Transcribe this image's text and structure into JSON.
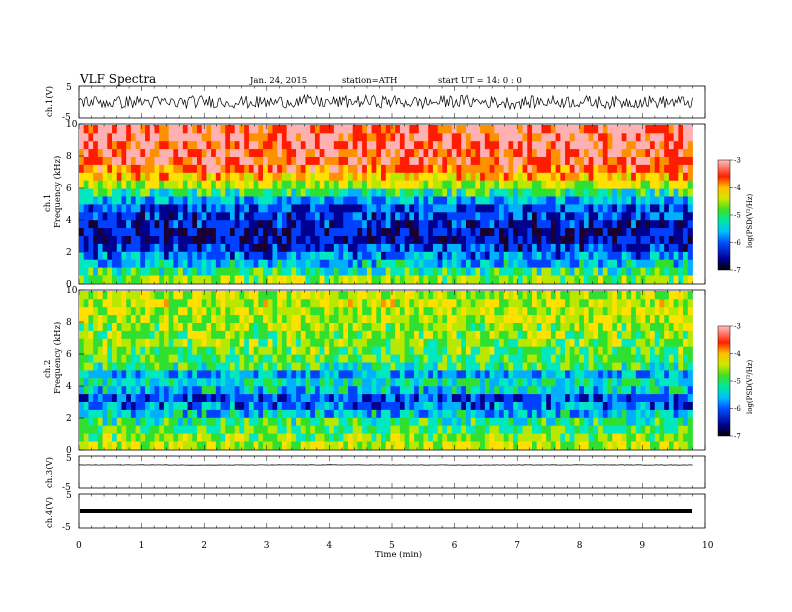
{
  "header": {
    "title": "VLF  Spectra",
    "date": "Jan. 24, 2015",
    "station": "station=ATH",
    "start": "start  UT  =    14: 0  : 0"
  },
  "colors": {
    "spectrogram_palette": [
      "#1a0030",
      "#000090",
      "#0040ff",
      "#00b0ff",
      "#00e8c0",
      "#30e030",
      "#b8e800",
      "#ffe000",
      "#ff9000",
      "#ff1c00",
      "#ffb0b0"
    ]
  },
  "chart_data": [
    {
      "type": "line",
      "name": "waveform-ch1",
      "ylabel": "ch.1(V)",
      "yticks": [
        "5",
        "-5"
      ],
      "ylim": [
        -5,
        5
      ],
      "x": [
        0,
        0.5,
        1,
        1.5,
        2,
        2.5,
        3,
        3.5,
        4,
        4.5,
        5,
        5.5,
        6,
        6.5,
        7,
        7.5,
        8,
        8.5,
        9,
        9.5,
        9.8
      ],
      "y": [
        0.3,
        -0.2,
        0.1,
        -0.3,
        0.2,
        0,
        -0.2,
        0.3,
        -0.1,
        0.2,
        0.1,
        -0.2,
        0.3,
        0,
        -0.3,
        0.2,
        0.1,
        -0.2,
        0.2,
        -0.1,
        0
      ],
      "note_range_V": [
        -2.5,
        2.5
      ]
    },
    {
      "type": "heatmap",
      "name": "spectrogram-ch1",
      "ylabel": "ch.1\nFrequency  (kHz)",
      "yticks": [
        "0",
        "2",
        "4",
        "6",
        "8",
        "10"
      ],
      "ylim": [
        0,
        10
      ],
      "xlim": [
        0,
        10
      ],
      "freq_kHz": [
        0.25,
        0.75,
        1.25,
        1.75,
        2.25,
        2.75,
        3.25,
        3.75,
        4.25,
        4.75,
        5.25,
        5.75,
        6.25,
        6.75,
        7.25,
        7.75,
        8.25,
        8.75,
        9.25,
        9.75
      ],
      "mean_logPSD": [
        -4.8,
        -5.2,
        -5.7,
        -5.9,
        -6.3,
        -6.6,
        -6.6,
        -6.5,
        -6.3,
        -6.2,
        -5.8,
        -5.2,
        -4.6,
        -4.0,
        -3.6,
        -3.4,
        -3.3,
        -3.25,
        -3.2,
        -3.2
      ],
      "colorbar": {
        "label": "log(PSD(V²/Hz)",
        "ticks": [
          "-3",
          "-4",
          "-5",
          "-6",
          "-7"
        ],
        "range": [
          -7,
          -3
        ]
      }
    },
    {
      "type": "heatmap",
      "name": "spectrogram-ch2",
      "ylabel": "ch.2\nFrequency  (kHz)",
      "yticks": [
        "0",
        "2",
        "4",
        "6",
        "8",
        "10"
      ],
      "ylim": [
        0,
        10
      ],
      "xlim": [
        0,
        10
      ],
      "freq_kHz": [
        0.25,
        0.75,
        1.25,
        1.75,
        2.25,
        2.75,
        3.25,
        3.75,
        4.25,
        4.75,
        5.25,
        5.75,
        6.25,
        6.75,
        7.25,
        7.75,
        8.25,
        8.75,
        9.25,
        9.75
      ],
      "mean_logPSD": [
        -4.6,
        -4.8,
        -5.0,
        -5.2,
        -5.6,
        -6.0,
        -6.2,
        -5.6,
        -5.4,
        -5.8,
        -5.2,
        -5.0,
        -4.9,
        -4.8,
        -4.8,
        -4.7,
        -4.6,
        -4.6,
        -4.5,
        -4.6
      ],
      "colorbar": {
        "label": "log(PSD(V²/Hz)",
        "ticks": [
          "-3",
          "-4",
          "-5",
          "-6",
          "-7"
        ],
        "range": [
          -7,
          -3
        ]
      }
    },
    {
      "type": "line",
      "name": "waveform-ch3",
      "ylabel": "ch.3(V)",
      "yticks": [
        "5",
        "-5"
      ],
      "ylim": [
        -5,
        5
      ],
      "x": [
        0,
        1,
        2,
        3,
        4,
        5,
        6,
        7,
        8,
        9,
        9.8
      ],
      "y": [
        0,
        0.05,
        -0.05,
        0,
        0.05,
        0,
        -0.05,
        0,
        0.05,
        0,
        0
      ]
    },
    {
      "type": "line",
      "name": "waveform-ch4",
      "ylabel": "ch.4(V)",
      "yticks": [
        "5",
        "-5"
      ],
      "ylim": [
        -5,
        5
      ],
      "x": [
        0,
        9.8
      ],
      "y": [
        0,
        0
      ]
    }
  ],
  "x_axis": {
    "label": "Time  (min)",
    "ticks": [
      "0",
      "1",
      "2",
      "3",
      "4",
      "5",
      "6",
      "7",
      "8",
      "9",
      "10"
    ],
    "xlim": [
      0,
      10
    ]
  }
}
